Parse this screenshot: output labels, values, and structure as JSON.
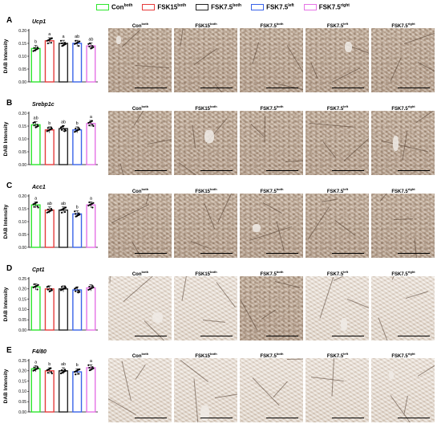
{
  "legend": [
    {
      "base": "Con",
      "sup": "both",
      "color": "#2ee62e"
    },
    {
      "base": "FSK15",
      "sup": "both",
      "color": "#e63b3b"
    },
    {
      "base": "FSK7.5",
      "sup": "both",
      "color": "#222222"
    },
    {
      "base": "FSK7.5",
      "sup": "left",
      "color": "#3a63e8"
    },
    {
      "base": "FSK7.5",
      "sup": "right",
      "color": "#e673e6"
    }
  ],
  "image_labels": [
    {
      "base": "Con",
      "sup": "both"
    },
    {
      "base": "FSK15",
      "sup": "both"
    },
    {
      "base": "FSK7.5",
      "sup": "both"
    },
    {
      "base": "FSK7.5",
      "sup": "left"
    },
    {
      "base": "FSK7.5",
      "sup": "right"
    }
  ],
  "panels": [
    {
      "letter": "A",
      "gene": "Ucp1",
      "ylabel": "DAB Intensity",
      "yticks": [
        "0.00",
        "0.05",
        "0.10",
        "0.15",
        "0.20"
      ],
      "ymax": 0.2,
      "chart_data": {
        "type": "bar",
        "categories": [
          "Con both",
          "FSK15 both",
          "FSK7.5 both",
          "FSK7.5 left",
          "FSK7.5 right"
        ],
        "values": [
          0.13,
          0.16,
          0.15,
          0.15,
          0.14
        ],
        "letters": [
          "b",
          "a",
          "a",
          "ab",
          "ab"
        ],
        "ylim": [
          0,
          0.2
        ]
      }
    },
    {
      "letter": "B",
      "gene": "Srebp1c",
      "ylabel": "DAB Intensity",
      "yticks": [
        "0.00",
        "0.05",
        "0.10",
        "0.15",
        "0.20"
      ],
      "ymax": 0.2,
      "chart_data": {
        "type": "bar",
        "categories": [
          "Con both",
          "FSK15 both",
          "FSK7.5 both",
          "FSK7.5 left",
          "FSK7.5 right"
        ],
        "values": [
          0.155,
          0.135,
          0.14,
          0.135,
          0.16
        ],
        "letters": [
          "ab",
          "b",
          "ab",
          "b",
          "a"
        ],
        "ylim": [
          0,
          0.2
        ]
      }
    },
    {
      "letter": "C",
      "gene": "Acc1",
      "ylabel": "DAB Intensity",
      "yticks": [
        "0.00",
        "0.05",
        "0.10",
        "0.15",
        "0.20"
      ],
      "ymax": 0.2,
      "chart_data": {
        "type": "bar",
        "categories": [
          "Con both",
          "FSK15 both",
          "FSK7.5 both",
          "FSK7.5 left",
          "FSK7.5 right"
        ],
        "values": [
          0.165,
          0.145,
          0.145,
          0.13,
          0.165
        ],
        "letters": [
          "a",
          "ab",
          "ab",
          "b",
          "a"
        ],
        "ylim": [
          0,
          0.2
        ]
      }
    },
    {
      "letter": "D",
      "gene": "Cpt1",
      "ylabel": "DAB Intensity",
      "yticks": [
        "0.00",
        "0.05",
        "0.10",
        "0.15",
        "0.20",
        "0.25"
      ],
      "ymax": 0.25,
      "chart_data": {
        "type": "bar",
        "categories": [
          "Con both",
          "FSK15 both",
          "FSK7.5 both",
          "FSK7.5 left",
          "FSK7.5 right"
        ],
        "values": [
          0.21,
          0.2,
          0.2,
          0.195,
          0.205
        ],
        "letters": [
          "",
          "",
          "",
          "",
          ""
        ],
        "ylim": [
          0,
          0.25
        ]
      }
    },
    {
      "letter": "E",
      "gene": "F4/80",
      "ylabel": "DAB Intensity",
      "yticks": [
        "0.00",
        "0.05",
        "0.10",
        "0.15",
        "0.20",
        "0.25"
      ],
      "ymax": 0.25,
      "chart_data": {
        "type": "bar",
        "categories": [
          "Con both",
          "FSK15 both",
          "FSK7.5 both",
          "FSK7.5 left",
          "FSK7.5 right"
        ],
        "values": [
          0.21,
          0.2,
          0.2,
          0.195,
          0.215
        ],
        "letters": [
          "a",
          "b",
          "ab",
          "b",
          "a"
        ],
        "ylim": [
          0,
          0.25
        ]
      }
    }
  ],
  "tile_tones": [
    [
      "normal",
      "dark",
      "normal",
      "normal",
      "normal"
    ],
    [
      "normal",
      "normal",
      "normal",
      "normal",
      "normal"
    ],
    [
      "dark",
      "normal",
      "normal",
      "normal",
      "dark"
    ],
    [
      "light",
      "light",
      "normal",
      "light",
      "light"
    ],
    [
      "light",
      "light",
      "light",
      "light",
      "light"
    ]
  ],
  "colors": {
    "con": "#2ee62e",
    "fsk15": "#e63b3b",
    "fsk75both": "#222222",
    "fsk75left": "#3a63e8",
    "fsk75right": "#e673e6"
  }
}
